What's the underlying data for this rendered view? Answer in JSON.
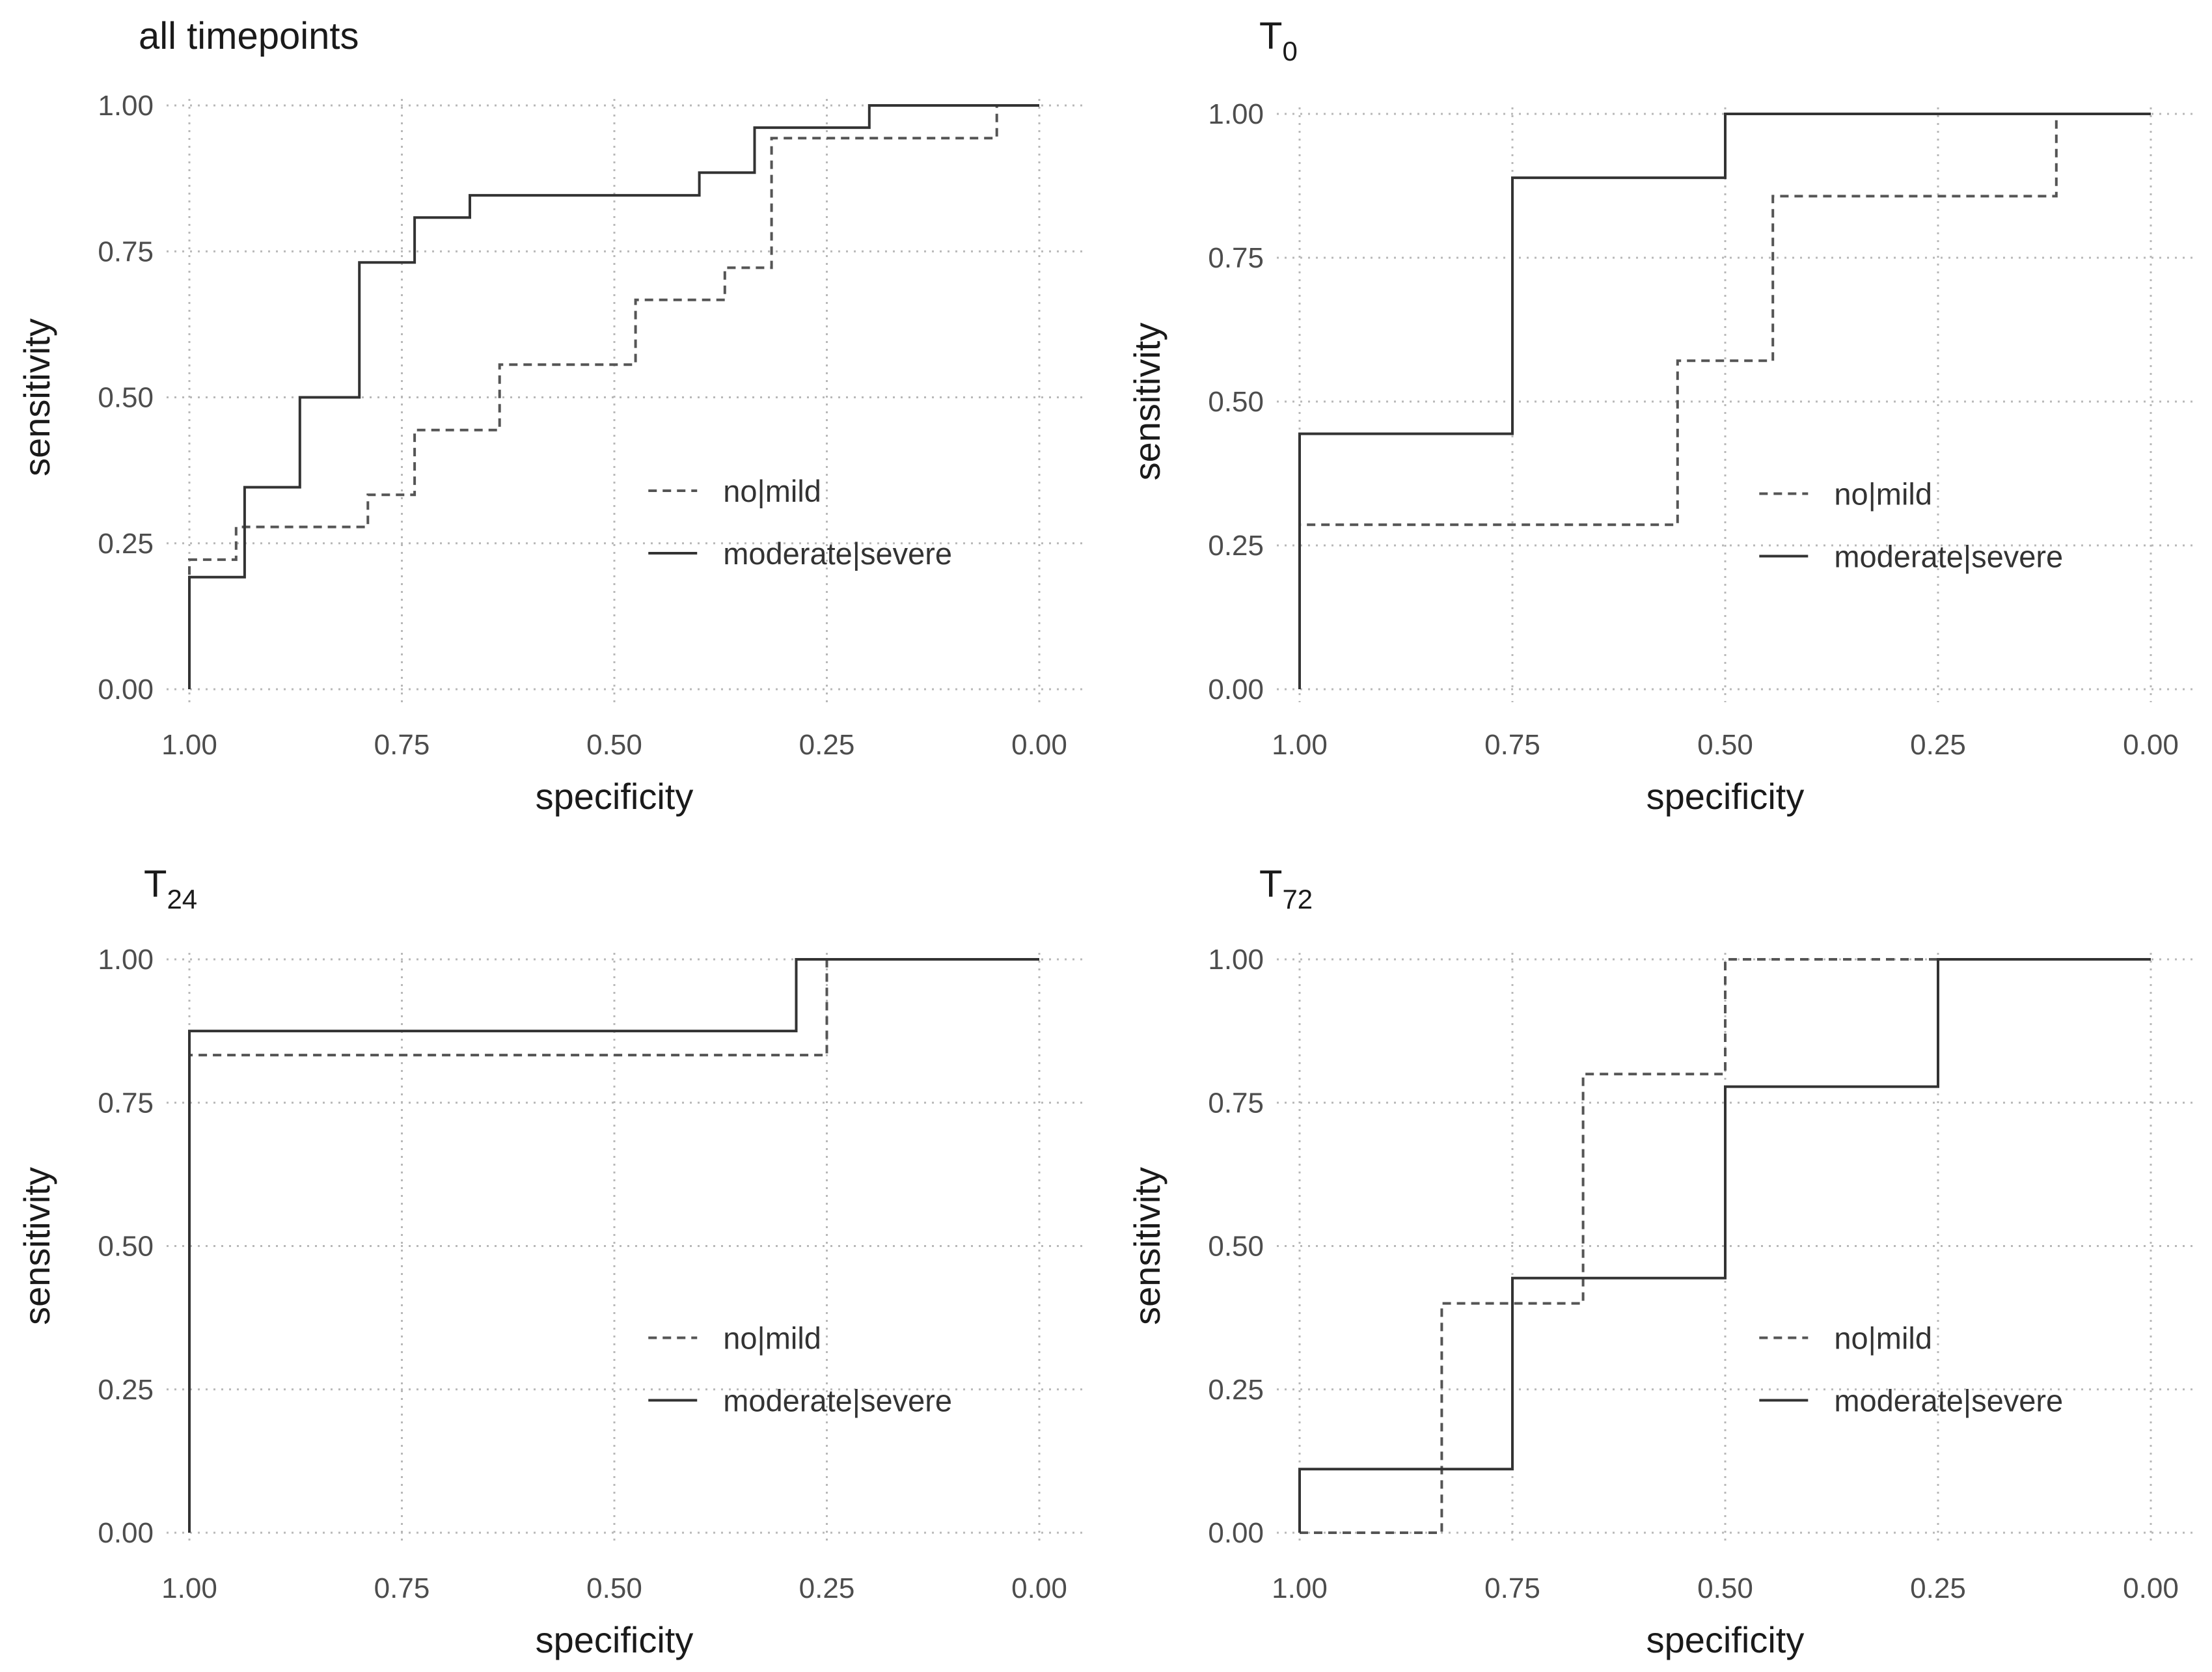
{
  "chart_data": [
    {
      "type": "line",
      "title": "all timepoints",
      "title_main": "all timepoints",
      "title_sub": "",
      "xlabel": "specificity",
      "ylabel": "sensitivity",
      "xlim": [
        1.0,
        0.0
      ],
      "ylim": [
        0.0,
        1.0
      ],
      "x_ticks": [
        "1.00",
        "0.75",
        "0.50",
        "0.25",
        "0.00"
      ],
      "y_ticks": [
        "0.00",
        "0.25",
        "0.50",
        "0.75",
        "1.00"
      ],
      "grid": true,
      "legend_position": "bottom-right",
      "series": [
        {
          "name": "no|mild",
          "style": "dashed",
          "specificity": [
            1.0,
            1.0,
            0.945,
            0.945,
            0.79,
            0.79,
            0.735,
            0.735,
            0.635,
            0.635,
            0.475,
            0.475,
            0.37,
            0.37,
            0.315,
            0.315,
            0.05,
            0.05,
            0.0
          ],
          "sensitivity": [
            0.0,
            0.222,
            0.222,
            0.278,
            0.278,
            0.333,
            0.333,
            0.444,
            0.444,
            0.556,
            0.556,
            0.667,
            0.667,
            0.722,
            0.722,
            0.944,
            0.944,
            1.0,
            1.0
          ]
        },
        {
          "name": "moderate|severe",
          "style": "solid",
          "specificity": [
            1.0,
            1.0,
            0.935,
            0.935,
            0.87,
            0.87,
            0.8,
            0.8,
            0.735,
            0.735,
            0.67,
            0.67,
            0.4,
            0.4,
            0.335,
            0.335,
            0.2,
            0.2,
            0.0
          ],
          "sensitivity": [
            0.0,
            0.192,
            0.192,
            0.346,
            0.346,
            0.5,
            0.5,
            0.731,
            0.731,
            0.808,
            0.808,
            0.846,
            0.846,
            0.885,
            0.885,
            0.962,
            0.962,
            1.0,
            1.0
          ]
        }
      ]
    },
    {
      "type": "line",
      "title": "T0",
      "title_main": "T",
      "title_sub": "0",
      "xlabel": "specificity",
      "ylabel": "sensitivity",
      "xlim": [
        1.0,
        0.0
      ],
      "ylim": [
        0.0,
        1.0
      ],
      "x_ticks": [
        "1.00",
        "0.75",
        "0.50",
        "0.25",
        "0.00"
      ],
      "y_ticks": [
        "0.00",
        "0.25",
        "0.50",
        "0.75",
        "1.00"
      ],
      "grid": true,
      "legend_position": "bottom-right",
      "series": [
        {
          "name": "no|mild",
          "style": "dashed",
          "specificity": [
            1.0,
            1.0,
            0.556,
            0.556,
            0.444,
            0.444,
            0.111,
            0.111,
            0.0
          ],
          "sensitivity": [
            0.0,
            0.286,
            0.286,
            0.571,
            0.571,
            0.857,
            0.857,
            1.0,
            1.0
          ]
        },
        {
          "name": "moderate|severe",
          "style": "solid",
          "specificity": [
            1.0,
            1.0,
            0.75,
            0.75,
            0.5,
            0.5,
            0.0
          ],
          "sensitivity": [
            0.0,
            0.444,
            0.444,
            0.889,
            0.889,
            1.0,
            1.0
          ]
        }
      ]
    },
    {
      "type": "line",
      "title": "T24",
      "title_main": "T",
      "title_sub": "24",
      "xlabel": "specificity",
      "ylabel": "sensitivity",
      "xlim": [
        1.0,
        0.0
      ],
      "ylim": [
        0.0,
        1.0
      ],
      "x_ticks": [
        "1.00",
        "0.75",
        "0.50",
        "0.25",
        "0.00"
      ],
      "y_ticks": [
        "0.00",
        "0.25",
        "0.50",
        "0.75",
        "1.00"
      ],
      "grid": true,
      "legend_position": "bottom-right",
      "series": [
        {
          "name": "no|mild",
          "style": "dashed",
          "specificity": [
            1.0,
            1.0,
            0.25,
            0.25,
            0.0
          ],
          "sensitivity": [
            0.0,
            0.833,
            0.833,
            1.0,
            1.0
          ]
        },
        {
          "name": "moderate|severe",
          "style": "solid",
          "specificity": [
            1.0,
            1.0,
            0.286,
            0.286,
            0.0
          ],
          "sensitivity": [
            0.0,
            0.875,
            0.875,
            1.0,
            1.0
          ]
        }
      ]
    },
    {
      "type": "line",
      "title": "T72",
      "title_main": "T",
      "title_sub": "72",
      "xlabel": "specificity",
      "ylabel": "sensitivity",
      "xlim": [
        1.0,
        0.0
      ],
      "ylim": [
        0.0,
        1.0
      ],
      "x_ticks": [
        "1.00",
        "0.75",
        "0.50",
        "0.25",
        "0.00"
      ],
      "y_ticks": [
        "0.00",
        "0.25",
        "0.50",
        "0.75",
        "1.00"
      ],
      "grid": true,
      "legend_position": "bottom-right",
      "series": [
        {
          "name": "no|mild",
          "style": "dashed",
          "specificity": [
            1.0,
            1.0,
            0.833,
            0.833,
            0.667,
            0.667,
            0.5,
            0.5,
            0.0
          ],
          "sensitivity": [
            0.0,
            0.0,
            0.0,
            0.4,
            0.4,
            0.8,
            0.8,
            1.0,
            1.0
          ]
        },
        {
          "name": "moderate|severe",
          "style": "solid",
          "specificity": [
            1.0,
            1.0,
            0.75,
            0.75,
            0.5,
            0.5,
            0.25,
            0.25,
            0.0
          ],
          "sensitivity": [
            0.0,
            0.111,
            0.111,
            0.444,
            0.444,
            0.778,
            0.778,
            1.0,
            1.0
          ]
        }
      ]
    }
  ]
}
